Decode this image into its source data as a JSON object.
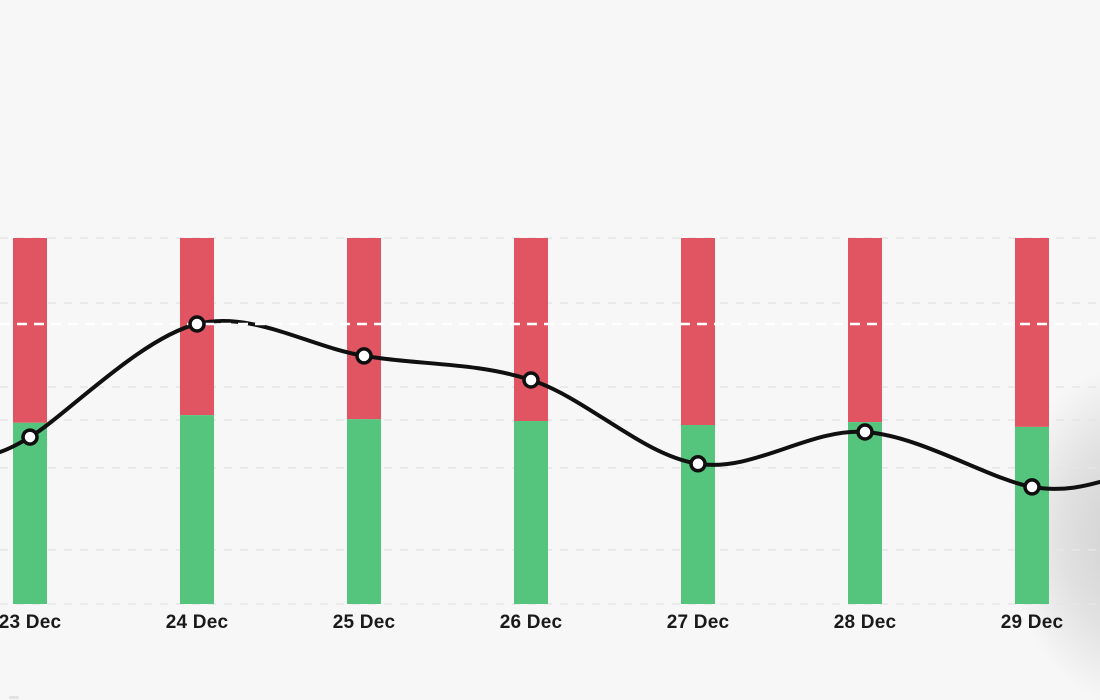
{
  "chart_data": {
    "type": "bar",
    "subtype": "stacked-percentage-bars-with-line-overlay",
    "title": "",
    "xlabel": "",
    "ylabel": "",
    "ylim": [
      0,
      100
    ],
    "legend": "none",
    "grid": "dashed-horizontal",
    "categories": [
      "23 Dec",
      "24 Dec",
      "25 Dec",
      "26 Dec",
      "27 Dec",
      "28 Dec",
      "29 Dec"
    ],
    "series": [
      {
        "name": "green-bottom-segment",
        "type": "bar-segment",
        "color": "#55c47d",
        "values": [
          49.5,
          51.6,
          50.5,
          50.0,
          48.9,
          49.7,
          48.4
        ]
      },
      {
        "name": "red-top-segment",
        "type": "bar-segment",
        "color": "#e15562",
        "values": [
          50.5,
          48.4,
          49.5,
          50.0,
          51.1,
          50.3,
          51.6
        ]
      },
      {
        "name": "trend-line",
        "type": "line",
        "color": "#101010",
        "marker": "white-circle-black-ring",
        "values": [
          45.6,
          76.5,
          67.8,
          61.2,
          38.3,
          47.0,
          32.0
        ]
      }
    ],
    "bar_total": 100,
    "gridline_values": [
      100,
      82.2,
      59.3,
      50.3,
      37.2,
      14.8,
      0
    ],
    "highlight_line_value": 76.5,
    "line_edge_extension": {
      "left_value": 40.5,
      "right_value": 34.7
    },
    "colors": {
      "background": "#f7f7f7",
      "gridline": "#e6e6e6",
      "highlight_line": "#ffffff",
      "line": "#101010",
      "marker_fill": "#ffffff",
      "label_text": "#1a1a1a",
      "edge_shadow": "rgba(0,0,0,0.16)"
    }
  }
}
